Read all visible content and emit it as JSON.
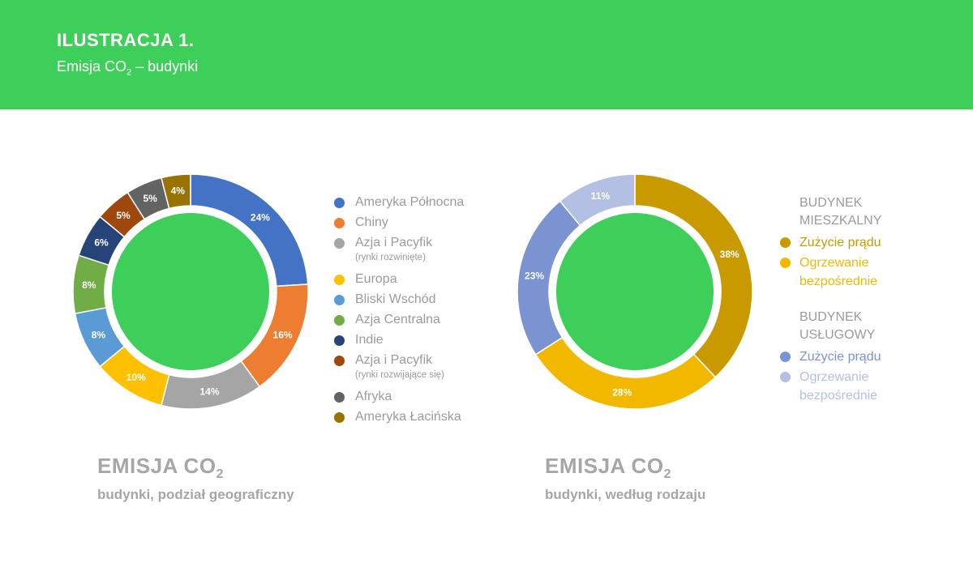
{
  "header": {
    "title": "ILUSTRACJA 1.",
    "subtitle_main": "Emisja CO",
    "subtitle_sub": "2",
    "subtitle_rest": " – budynki"
  },
  "colors": {
    "header_bg": "#3ecf5a",
    "center_green": "#3ecf5a"
  },
  "chart_data": [
    {
      "type": "pie",
      "variant": "donut",
      "title": "EMISJA CO",
      "title_sub": "2",
      "subtitle": "budynki, podział geograficzny",
      "legend_position": "right",
      "slices": [
        {
          "label": "Ameryka Północna",
          "note": "",
          "value": 24,
          "value_label": "24%",
          "color": "#4472c4"
        },
        {
          "label": "Chiny",
          "note": "",
          "value": 16,
          "value_label": "16%",
          "color": "#ed7d31"
        },
        {
          "label": "Azja i Pacyfik",
          "note": "(rynki rozwinięte)",
          "value": 14,
          "value_label": "14%",
          "color": "#a5a5a5"
        },
        {
          "label": "Europa",
          "note": "",
          "value": 10,
          "value_label": "10%",
          "color": "#ffc000"
        },
        {
          "label": "Bliski Wschód",
          "note": "",
          "value": 8,
          "value_label": "8%",
          "color": "#5b9bd5"
        },
        {
          "label": "Azja Centralna",
          "note": "",
          "value": 8,
          "value_label": "8%",
          "color": "#70ad47"
        },
        {
          "label": "Indie",
          "note": "",
          "value": 6,
          "value_label": "6%",
          "color": "#264478"
        },
        {
          "label": "Azja i Pacyfik",
          "note": "(rynki rozwijające się)",
          "value": 5,
          "value_label": "5%",
          "color": "#9e480e"
        },
        {
          "label": "Afryka",
          "note": "",
          "value": 5,
          "value_label": "5%",
          "color": "#636363"
        },
        {
          "label": "Ameryka Łacińska",
          "note": "",
          "value": 4,
          "value_label": "4%",
          "color": "#997300"
        }
      ]
    },
    {
      "type": "pie",
      "variant": "donut",
      "title": "EMISJA CO",
      "title_sub": "2",
      "subtitle": "budynki, według rodzaju",
      "legend_position": "right",
      "groups": [
        {
          "heading_line1": "BUDYNEK",
          "heading_line2": "MIESZKALNY"
        },
        {
          "heading_line1": "BUDYNEK",
          "heading_line2": "USŁUGOWY"
        }
      ],
      "slices": [
        {
          "label": "Zużycie prądu",
          "label_line2": "",
          "group": 0,
          "value": 38,
          "value_label": "38%",
          "color": "#c99a00"
        },
        {
          "label": "Ogrzewanie",
          "label_line2": "bezpośrednie",
          "group": 0,
          "value": 28,
          "value_label": "28%",
          "color": "#f2b800"
        },
        {
          "label": "Zużycie prądu",
          "label_line2": "",
          "group": 1,
          "value": 23,
          "value_label": "23%",
          "color": "#7b93d1"
        },
        {
          "label": "Ogrzewanie",
          "label_line2": "bezpośrednie",
          "group": 1,
          "value": 11,
          "value_label": "11%",
          "color": "#b4c0e3"
        }
      ]
    }
  ]
}
